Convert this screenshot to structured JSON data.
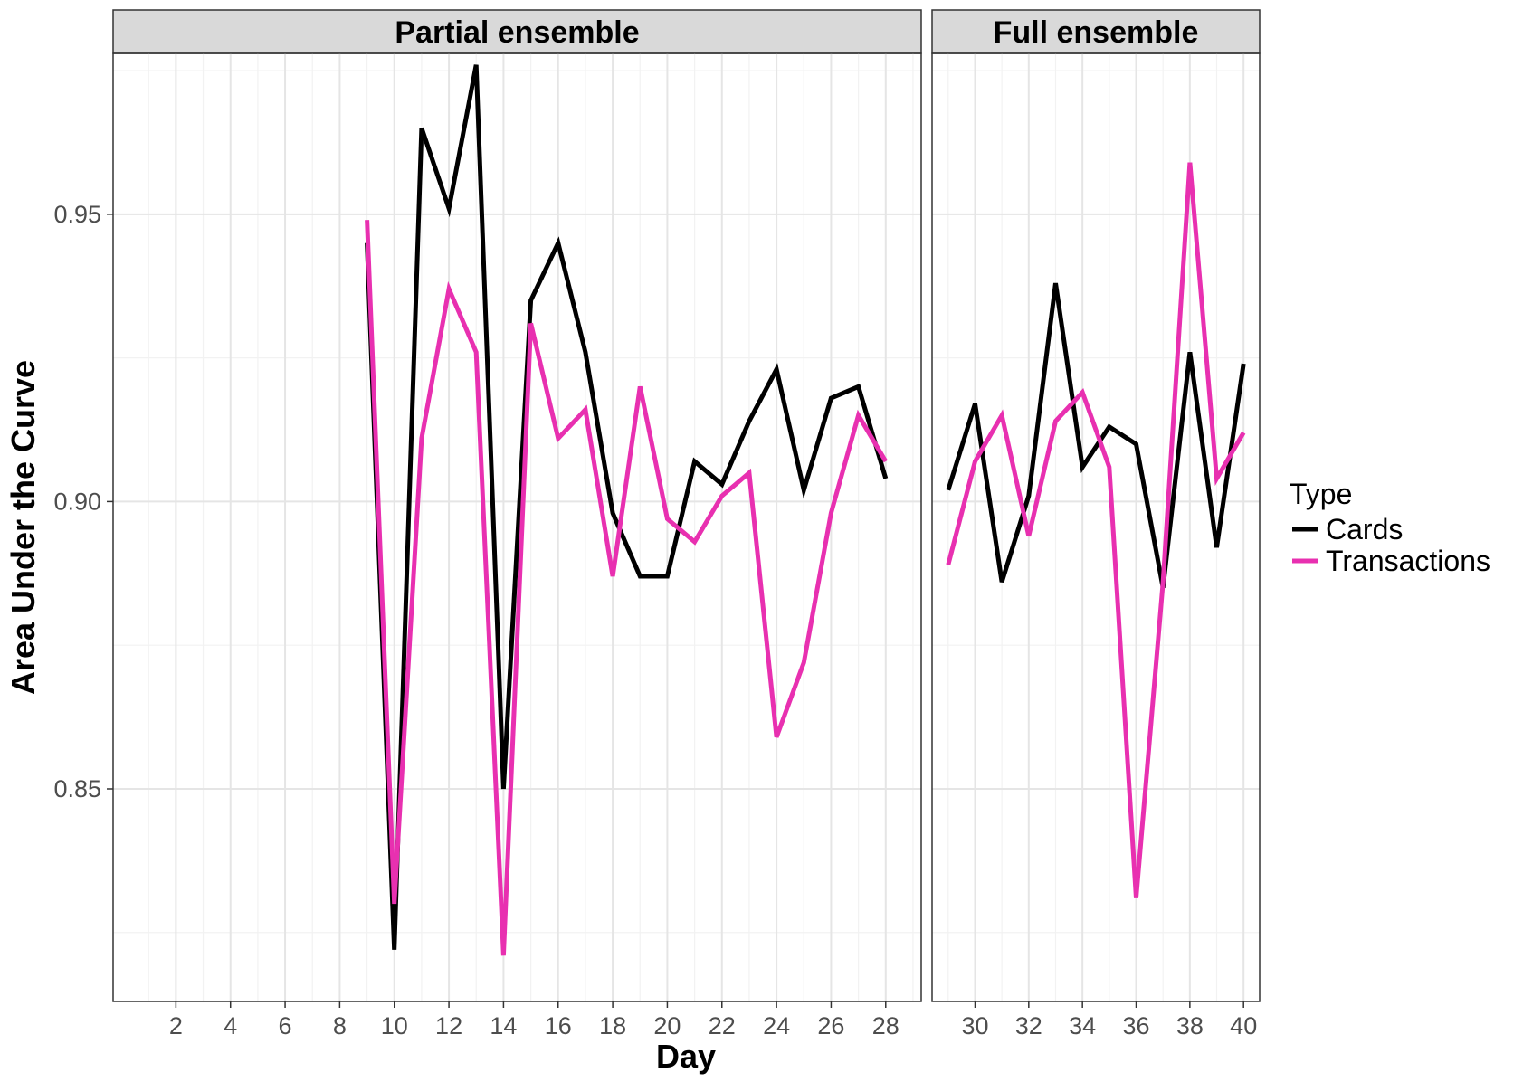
{
  "chart_data": {
    "type": "line",
    "xlabel": "Day",
    "ylabel": "Area Under the Curve",
    "ylim": [
      0.813,
      0.978
    ],
    "y_ticks": [
      0.85,
      0.9,
      0.95
    ],
    "y_tick_labels": [
      "0.85",
      "0.90",
      "0.95"
    ],
    "grid": true,
    "legend": {
      "title": "Type",
      "placement": "right"
    },
    "colors": {
      "Cards": "#000000",
      "Transactions": "#e830b0"
    },
    "panels": [
      {
        "title": "Partial ensemble",
        "xlim": [
          -0.3,
          29.3
        ],
        "x_ticks": [
          2,
          4,
          6,
          8,
          10,
          12,
          14,
          16,
          18,
          20,
          22,
          24,
          26,
          28
        ],
        "series": [
          {
            "name": "Cards",
            "x": [
              9,
              10,
              11,
              12,
              13,
              14,
              15,
              16,
              17,
              18,
              19,
              20,
              21,
              22,
              23,
              24,
              25,
              26,
              27,
              28
            ],
            "values": [
              0.945,
              0.822,
              0.965,
              0.951,
              0.976,
              0.85,
              0.935,
              0.945,
              0.926,
              0.898,
              0.887,
              0.887,
              0.907,
              0.903,
              0.914,
              0.923,
              0.902,
              0.918,
              0.92,
              0.904
            ]
          },
          {
            "name": "Transactions",
            "x": [
              9,
              10,
              11,
              12,
              13,
              14,
              15,
              16,
              17,
              18,
              19,
              20,
              21,
              22,
              23,
              24,
              25,
              26,
              27,
              28
            ],
            "values": [
              0.949,
              0.83,
              0.911,
              0.937,
              0.926,
              0.821,
              0.931,
              0.911,
              0.916,
              0.887,
              0.92,
              0.897,
              0.893,
              0.901,
              0.905,
              0.859,
              0.872,
              0.898,
              0.915,
              0.907
            ]
          }
        ]
      },
      {
        "title": "Full ensemble",
        "xlim": [
          28.4,
          40.6
        ],
        "x_ticks": [
          30,
          32,
          34,
          36,
          38,
          40
        ],
        "series": [
          {
            "name": "Cards",
            "x": [
              29,
              30,
              31,
              32,
              33,
              34,
              35,
              36,
              37,
              38,
              39,
              40
            ],
            "values": [
              0.902,
              0.917,
              0.886,
              0.901,
              0.938,
              0.906,
              0.913,
              0.91,
              0.885,
              0.926,
              0.892,
              0.924
            ]
          },
          {
            "name": "Transactions",
            "x": [
              29,
              30,
              31,
              32,
              33,
              34,
              35,
              36,
              37,
              38,
              39,
              40
            ],
            "values": [
              0.889,
              0.907,
              0.915,
              0.894,
              0.914,
              0.919,
              0.906,
              0.831,
              0.886,
              0.959,
              0.904,
              0.912
            ]
          }
        ]
      }
    ]
  }
}
